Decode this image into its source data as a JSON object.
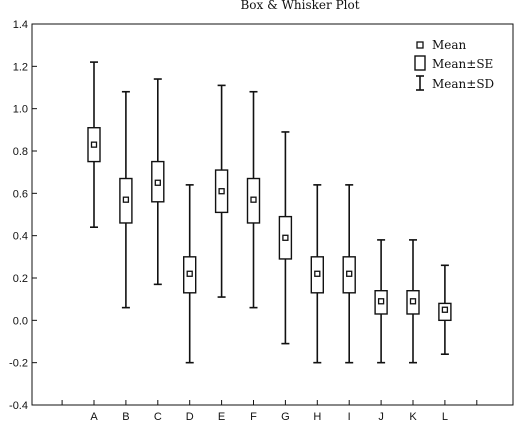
{
  "chart_data": {
    "type": "box",
    "title": "Box & Whisker Plot",
    "xlabel": "",
    "ylabel": "",
    "ylim": [
      -0.4,
      1.4
    ],
    "yticks": [
      -0.4,
      -0.2,
      0.0,
      0.2,
      0.4,
      0.6,
      0.8,
      1.0,
      1.2,
      1.4
    ],
    "ytick_labels": [
      "-0.4",
      "-0.2",
      "0.0",
      "0.2",
      "0.4",
      "0.6",
      "0.8",
      "1.0",
      "1.2",
      "1.4"
    ],
    "grid": false,
    "categories": [
      "A",
      "B",
      "C",
      "D",
      "E",
      "F",
      "G",
      "H",
      "I",
      "J",
      "K",
      "L"
    ],
    "series": [
      {
        "category": "A",
        "mean": 0.83,
        "se_low": 0.75,
        "se_high": 0.91,
        "sd_low": 0.44,
        "sd_high": 1.22
      },
      {
        "category": "B",
        "mean": 0.57,
        "se_low": 0.46,
        "se_high": 0.67,
        "sd_low": 0.06,
        "sd_high": 1.08
      },
      {
        "category": "C",
        "mean": 0.65,
        "se_low": 0.56,
        "se_high": 0.75,
        "sd_low": 0.17,
        "sd_high": 1.14
      },
      {
        "category": "D",
        "mean": 0.22,
        "se_low": 0.13,
        "se_high": 0.3,
        "sd_low": -0.2,
        "sd_high": 0.64
      },
      {
        "category": "E",
        "mean": 0.61,
        "se_low": 0.51,
        "se_high": 0.71,
        "sd_low": 0.11,
        "sd_high": 1.11
      },
      {
        "category": "F",
        "mean": 0.57,
        "se_low": 0.46,
        "se_high": 0.67,
        "sd_low": 0.06,
        "sd_high": 1.08
      },
      {
        "category": "G",
        "mean": 0.39,
        "se_low": 0.29,
        "se_high": 0.49,
        "sd_low": -0.11,
        "sd_high": 0.89
      },
      {
        "category": "H",
        "mean": 0.22,
        "se_low": 0.13,
        "se_high": 0.3,
        "sd_low": -0.2,
        "sd_high": 0.64
      },
      {
        "category": "I",
        "mean": 0.22,
        "se_low": 0.13,
        "se_high": 0.3,
        "sd_low": -0.2,
        "sd_high": 0.64
      },
      {
        "category": "J",
        "mean": 0.09,
        "se_low": 0.03,
        "se_high": 0.14,
        "sd_low": -0.2,
        "sd_high": 0.38
      },
      {
        "category": "K",
        "mean": 0.09,
        "se_low": 0.03,
        "se_high": 0.14,
        "sd_low": -0.2,
        "sd_high": 0.38
      },
      {
        "category": "L",
        "mean": 0.05,
        "se_low": 0.0,
        "se_high": 0.08,
        "sd_low": -0.16,
        "sd_high": 0.26
      }
    ],
    "legend": {
      "placement": "top-right",
      "entries": [
        {
          "symbol": "small-square",
          "label": "Mean"
        },
        {
          "symbol": "box",
          "label": "Mean±SE"
        },
        {
          "symbol": "whisker",
          "label": "Mean±SD"
        }
      ]
    },
    "colors": {
      "ink": "#111111",
      "background": "#ffffff"
    }
  }
}
